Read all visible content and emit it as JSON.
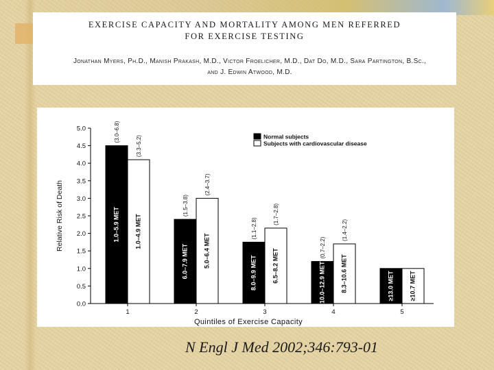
{
  "header": {
    "title_line1": "EXERCISE CAPACITY AND MORTALITY AMONG MEN REFERRED",
    "title_line2": "FOR EXERCISE TESTING",
    "authors_line1": "Jonathan Myers, Ph.D., Manish Prakash, M.D., Victor Froelicher, M.D., Dat Do, M.D., Sara Partington, B.Sc.,",
    "authors_line2": "and J. Edwin Atwood, M.D."
  },
  "chart_data": {
    "type": "bar",
    "title": "",
    "xlabel": "Quintiles of Exercise Capacity",
    "ylabel": "Relative Risk of Death",
    "ylim": [
      0,
      5
    ],
    "y_ticks": [
      "0.0",
      "0.5",
      "1.0",
      "1.5",
      "2.0",
      "2.5",
      "3.0",
      "3.5",
      "4.0",
      "4.5",
      "5.0"
    ],
    "categories": [
      "1",
      "2",
      "3",
      "4",
      "5"
    ],
    "legend_position": "top-right",
    "series": [
      {
        "name": "Normal subjects",
        "color": "#000000",
        "values": [
          4.5,
          2.4,
          1.75,
          1.2,
          1.0
        ],
        "bar_labels": [
          "1.0–5.9 MET",
          "6.0–7.9 MET",
          "8.0–9.9 MET",
          "10.0–12.9 MET",
          "≥13.0 MET"
        ],
        "ci_labels": [
          "(3.0–6.8)",
          "(1.5–3.8)",
          "(1.1–2.8)",
          "(0.7–2.2)",
          ""
        ]
      },
      {
        "name": "Subjects with cardiovascular disease",
        "color": "#ffffff",
        "values": [
          4.1,
          3.0,
          2.15,
          1.7,
          1.0
        ],
        "bar_labels": [
          "1.0–4.9 MET",
          "5.0–6.4 MET",
          "6.5–8.2 MET",
          "8.3–10.6 MET",
          "≥10.7 MET"
        ],
        "ci_labels": [
          "(3.3–5.2)",
          "(2.4–3.7)",
          "(1.7–2.8)",
          "(1.4–2.2)",
          ""
        ]
      }
    ]
  },
  "footer": {
    "citation": "N Engl J Med 2002;346:793-01"
  },
  "colors": {
    "background": "#e6d4a6",
    "panel": "#ffffff",
    "text": "#1a1a1a"
  }
}
